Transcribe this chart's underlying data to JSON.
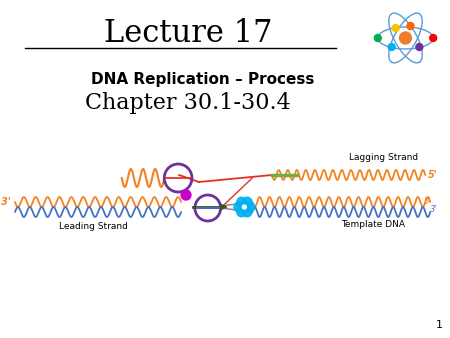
{
  "title": "Lecture 17",
  "subtitle": "DNA Replication – Process",
  "chapter": "Chapter 30.1-30.4",
  "slide_number": "1",
  "bg_color": "#ffffff",
  "title_fontsize": 22,
  "subtitle_fontsize": 11,
  "chapter_fontsize": 16,
  "labels": {
    "lagging": "Lagging Strand",
    "leading": "Leading Strand",
    "template": "Template DNA",
    "five_prime_lag": "5'",
    "five_prime_tmpl": "5'",
    "three_prime_tmpl": "3'",
    "three_prime_lead": "3'"
  },
  "colors": {
    "orange_strand": "#f4831f",
    "red_strand": "#e63027",
    "blue_strand": "#4472c4",
    "green_strand": "#70ad47",
    "purple_ring": "#7030a0",
    "magenta_dot": "#cc00cc",
    "cyan_flower": "#00b0f0",
    "dark_green_arrow": "#375623",
    "gray_line": "#808080"
  }
}
